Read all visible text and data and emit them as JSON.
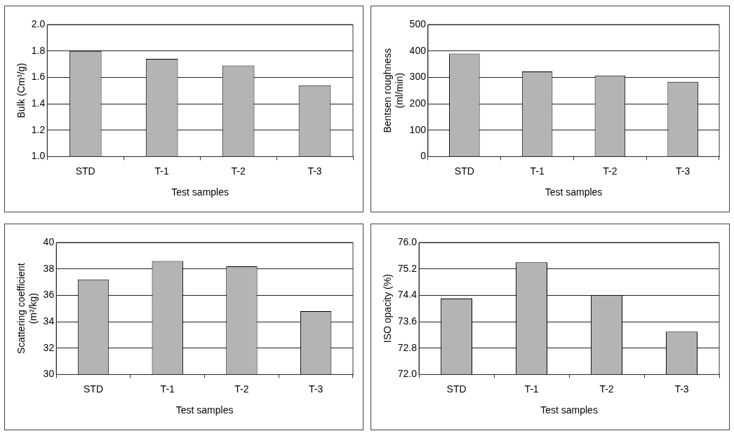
{
  "chart_data": [
    {
      "type": "bar",
      "xlabel": "Test samples",
      "ylabel": "Bulk (Cm³/g)",
      "categories": [
        "STD",
        "T-1",
        "T-2",
        "T-3"
      ],
      "values": [
        1.8,
        1.74,
        1.69,
        1.54
      ],
      "color": "#b4b4b4",
      "ylim": [
        1.0,
        2.0
      ],
      "yticks": [
        {
          "value": 1.0,
          "label": "1.0"
        },
        1.2,
        1.4,
        1.6,
        1.8,
        {
          "value": 2.0,
          "label": "2.0"
        }
      ],
      "grid": "y"
    },
    {
      "type": "bar",
      "xlabel": "Test samples",
      "ylabel": "Bentsen roughness\n(ml/min)",
      "categories": [
        "STD",
        "T-1",
        "T-2",
        "T-3"
      ],
      "values": [
        390,
        322,
        307,
        283
      ],
      "color": "#b4b4b4",
      "ylim": [
        0,
        500
      ],
      "yticks": [
        0,
        100,
        200,
        300,
        400,
        500
      ],
      "grid": "y"
    },
    {
      "type": "bar",
      "xlabel": "Test samples",
      "ylabel": "Scattering coefficient\n(m²/kg)",
      "categories": [
        "STD",
        "T-1",
        "T-2",
        "T-3"
      ],
      "values": [
        37.2,
        38.6,
        38.2,
        34.8
      ],
      "color": "#b4b4b4",
      "ylim": [
        30,
        40
      ],
      "yticks": [
        30,
        32,
        34,
        36,
        38,
        40
      ],
      "grid": "y"
    },
    {
      "type": "bar",
      "xlabel": "Test samples",
      "ylabel": "ISO opacity (%)",
      "categories": [
        "STD",
        "T-1",
        "T-2",
        "T-3"
      ],
      "values": [
        74.3,
        75.4,
        74.4,
        73.3
      ],
      "color": "#b4b4b4",
      "ylim": [
        72.0,
        76.0
      ],
      "yticks": [
        {
          "value": 72.0,
          "label": "72.0"
        },
        72.8,
        73.6,
        74.4,
        75.2,
        {
          "value": 76.0,
          "label": "76.0"
        }
      ],
      "grid": "y"
    }
  ]
}
